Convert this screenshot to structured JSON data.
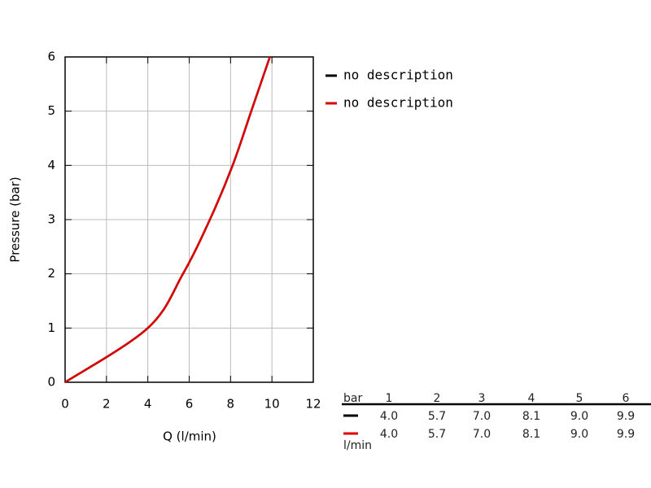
{
  "chart_data": {
    "type": "line",
    "xlabel": "Q (l/min)",
    "ylabel": "Pressure (bar)",
    "series": [
      {
        "name": "no description",
        "color": "#000000",
        "x": [
          0,
          4.0,
          5.7,
          7.0,
          8.1,
          9.0,
          9.9
        ],
        "values": [
          0,
          1,
          2,
          3,
          4,
          5,
          6
        ]
      },
      {
        "name": "no description",
        "color": "#dd0000",
        "x": [
          0,
          4.0,
          5.7,
          7.0,
          8.1,
          9.0,
          9.9
        ],
        "values": [
          0,
          1,
          2,
          3,
          4,
          5,
          6
        ]
      }
    ],
    "xlim": [
      0,
      12
    ],
    "xticks": [
      0,
      2,
      4,
      6,
      8,
      10,
      12
    ],
    "ylim": [
      0,
      6
    ],
    "yticks": [
      0,
      1,
      2,
      3,
      4,
      5,
      6
    ],
    "grid": true,
    "legend": "right"
  },
  "table": {
    "header_label": "bar",
    "columns": [
      "1",
      "2",
      "3",
      "4",
      "5",
      "6"
    ],
    "unit": "l/min",
    "rows": [
      [
        "4.0",
        "5.7",
        "7.0",
        "8.1",
        "9.0",
        "9.9"
      ],
      [
        "4.0",
        "5.7",
        "7.0",
        "8.1",
        "9.0",
        "9.9"
      ]
    ]
  }
}
